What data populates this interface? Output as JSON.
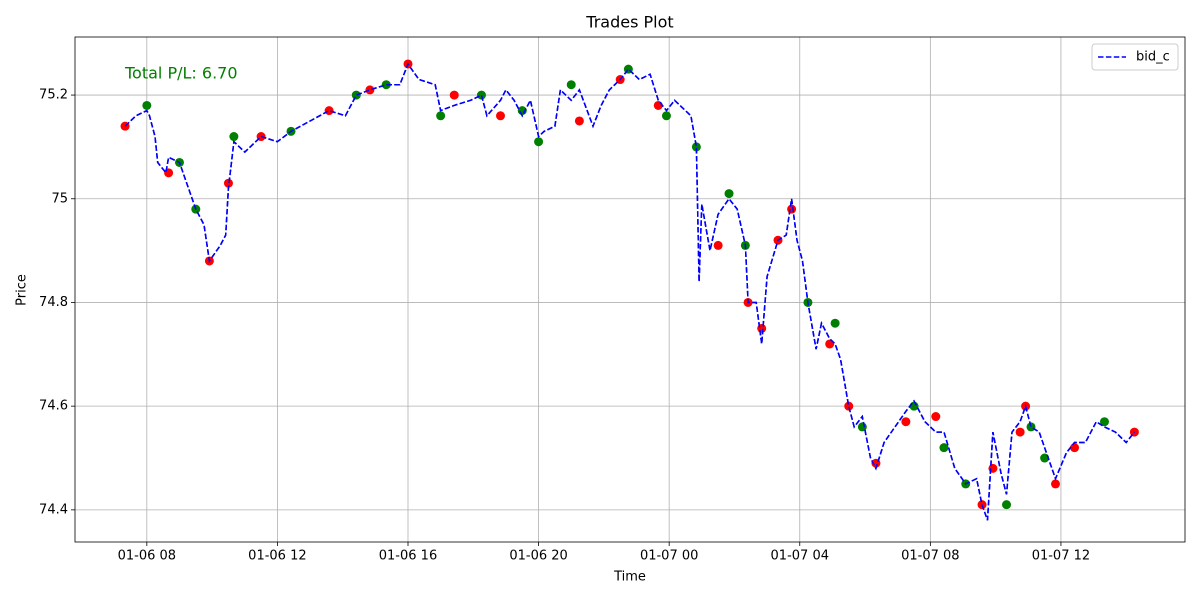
{
  "chart_data": {
    "type": "line",
    "title": "Trades Plot",
    "x_label": "Time",
    "y_label": "Price",
    "annotation": "Total P/L: 6.70",
    "annotation_color": "#008000",
    "xlim": [
      "01-06 05:48",
      "01-07 15:48"
    ],
    "ylim": [
      74.338,
      75.312
    ],
    "xticks": [
      {
        "value": "01-06 08:00",
        "label": "01-06 08"
      },
      {
        "value": "01-06 12:00",
        "label": "01-06 12"
      },
      {
        "value": "01-06 16:00",
        "label": "01-06 16"
      },
      {
        "value": "01-06 20:00",
        "label": "01-06 20"
      },
      {
        "value": "01-07 00:00",
        "label": "01-07 00"
      },
      {
        "value": "01-07 04:00",
        "label": "01-07 04"
      },
      {
        "value": "01-07 08:00",
        "label": "01-07 08"
      },
      {
        "value": "01-07 12:00",
        "label": "01-07 12"
      }
    ],
    "yticks": [
      74.4,
      74.6,
      74.8,
      75.0,
      75.2
    ],
    "grid": true,
    "legend": "upper right",
    "series": [
      {
        "name": "bid_c",
        "color": "#0000ff",
        "type": "line",
        "dash": true,
        "x": [
          "01-06 07:20",
          "01-06 07:40",
          "01-06 08:00",
          "01-06 08:05",
          "01-06 08:15",
          "01-06 08:20",
          "01-06 08:35",
          "01-06 08:40",
          "01-06 09:00",
          "01-06 09:10",
          "01-06 09:30",
          "01-06 09:45",
          "01-06 09:55",
          "01-06 10:15",
          "01-06 10:25",
          "01-06 10:30",
          "01-06 10:40",
          "01-06 11:00",
          "01-06 11:30",
          "01-06 12:00",
          "01-06 12:25",
          "01-06 13:00",
          "01-06 13:35",
          "01-06 14:05",
          "01-06 14:25",
          "01-06 14:50",
          "01-06 15:20",
          "01-06 15:45",
          "01-06 16:00",
          "01-06 16:20",
          "01-06 16:50",
          "01-06 17:00",
          "01-06 17:25",
          "01-06 17:55",
          "01-06 18:15",
          "01-06 18:25",
          "01-06 18:50",
          "01-06 19:00",
          "01-06 19:15",
          "01-06 19:30",
          "01-06 19:45",
          "01-06 20:00",
          "01-06 20:10",
          "01-06 20:30",
          "01-06 20:40",
          "01-06 21:00",
          "01-06 21:15",
          "01-06 21:40",
          "01-06 21:55",
          "01-06 22:10",
          "01-06 22:30",
          "01-06 22:45",
          "01-06 23:05",
          "01-06 23:25",
          "01-06 23:40",
          "01-06 23:55",
          "01-07 00:10",
          "01-07 00:40",
          "01-07 00:50",
          "01-07 00:55",
          "01-07 01:00",
          "01-07 01:15",
          "01-07 01:30",
          "01-07 01:50",
          "01-07 02:05",
          "01-07 02:20",
          "01-07 02:25",
          "01-07 02:40",
          "01-07 02:50",
          "01-07 03:00",
          "01-07 03:20",
          "01-07 03:35",
          "01-07 03:45",
          "01-07 03:55",
          "01-07 04:05",
          "01-07 04:15",
          "01-07 04:30",
          "01-07 04:40",
          "01-07 04:55",
          "01-07 05:05",
          "01-07 05:15",
          "01-07 05:30",
          "01-07 05:40",
          "01-07 05:55",
          "01-07 06:10",
          "01-07 06:20",
          "01-07 06:35",
          "01-07 06:55",
          "01-07 07:15",
          "01-07 07:30",
          "01-07 07:50",
          "01-07 08:10",
          "01-07 08:25",
          "01-07 08:45",
          "01-07 09:05",
          "01-07 09:25",
          "01-07 09:35",
          "01-07 09:45",
          "01-07 09:55",
          "01-07 10:10",
          "01-07 10:20",
          "01-07 10:30",
          "01-07 10:45",
          "01-07 10:55",
          "01-07 11:05",
          "01-07 11:20",
          "01-07 11:30",
          "01-07 11:50",
          "01-07 12:10",
          "01-07 12:25",
          "01-07 12:45",
          "01-07 13:05",
          "01-07 13:20",
          "01-07 13:40",
          "01-07 14:00",
          "01-07 14:15"
        ],
        "values": [
          75.14,
          75.16,
          75.17,
          75.16,
          75.12,
          75.07,
          75.05,
          75.08,
          75.07,
          75.04,
          74.98,
          74.95,
          74.88,
          74.91,
          74.93,
          75.02,
          75.11,
          75.09,
          75.12,
          75.11,
          75.13,
          75.15,
          75.17,
          75.16,
          75.2,
          75.21,
          75.22,
          75.22,
          75.26,
          75.23,
          75.22,
          75.17,
          75.18,
          75.19,
          75.2,
          75.16,
          75.19,
          75.21,
          75.19,
          75.16,
          75.19,
          75.12,
          75.13,
          75.14,
          75.21,
          75.19,
          75.21,
          75.14,
          75.18,
          75.21,
          75.23,
          75.25,
          75.23,
          75.24,
          75.19,
          75.17,
          75.19,
          75.16,
          75.1,
          74.84,
          74.99,
          74.9,
          74.97,
          75.0,
          74.98,
          74.91,
          74.8,
          74.8,
          74.72,
          74.85,
          74.92,
          74.93,
          75.0,
          74.92,
          74.88,
          74.8,
          74.71,
          74.76,
          74.73,
          74.72,
          74.69,
          74.6,
          74.56,
          74.58,
          74.5,
          74.48,
          74.53,
          74.56,
          74.59,
          74.61,
          74.57,
          74.55,
          74.55,
          74.48,
          74.45,
          74.46,
          74.41,
          74.38,
          74.55,
          74.47,
          74.43,
          74.55,
          74.57,
          74.6,
          74.56,
          74.55,
          74.52,
          74.46,
          74.51,
          74.53,
          74.53,
          74.57,
          74.56,
          74.55,
          74.53,
          74.55
        ]
      },
      {
        "color": "#ff0000",
        "type": "scatter",
        "x": [
          "01-06 07:20",
          "01-06 08:40",
          "01-06 09:55",
          "01-06 10:30",
          "01-06 11:30",
          "01-06 13:35",
          "01-06 14:50",
          "01-06 16:00",
          "01-06 17:25",
          "01-06 18:50",
          "01-06 21:15",
          "01-06 22:30",
          "01-06 23:40",
          "01-07 01:30",
          "01-07 02:25",
          "01-07 02:50",
          "01-07 03:20",
          "01-07 03:45",
          "01-07 04:55",
          "01-07 05:30",
          "01-07 06:20",
          "01-07 07:15",
          "01-07 08:10",
          "01-07 09:35",
          "01-07 09:55",
          "01-07 10:45",
          "01-07 10:55",
          "01-07 11:50",
          "01-07 12:25",
          "01-07 14:15"
        ],
        "values": [
          75.14,
          75.05,
          74.88,
          75.03,
          75.12,
          75.17,
          75.21,
          75.26,
          75.2,
          75.16,
          75.15,
          75.23,
          75.18,
          74.91,
          74.8,
          74.75,
          74.92,
          74.98,
          74.72,
          74.6,
          74.49,
          74.57,
          74.58,
          74.41,
          74.48,
          74.55,
          74.6,
          74.45,
          74.52,
          74.55
        ]
      },
      {
        "color": "#008000",
        "type": "scatter",
        "x": [
          "01-06 08:00",
          "01-06 09:00",
          "01-06 09:30",
          "01-06 10:40",
          "01-06 12:25",
          "01-06 14:25",
          "01-06 15:20",
          "01-06 17:00",
          "01-06 18:15",
          "01-06 19:30",
          "01-06 20:00",
          "01-06 21:00",
          "01-06 22:45",
          "01-06 23:55",
          "01-07 00:50",
          "01-07 01:50",
          "01-07 02:20",
          "01-07 04:15",
          "01-07 05:05",
          "01-07 05:55",
          "01-07 07:30",
          "01-07 08:25",
          "01-07 09:05",
          "01-07 10:20",
          "01-07 11:05",
          "01-07 11:30",
          "01-07 13:20"
        ],
        "values": [
          75.18,
          75.07,
          74.98,
          75.12,
          75.13,
          75.2,
          75.22,
          75.16,
          75.2,
          75.17,
          75.11,
          75.22,
          75.25,
          75.16,
          75.1,
          75.01,
          74.91,
          74.8,
          74.76,
          74.56,
          74.6,
          74.52,
          74.45,
          74.41,
          74.56,
          74.5,
          74.57
        ]
      }
    ]
  }
}
